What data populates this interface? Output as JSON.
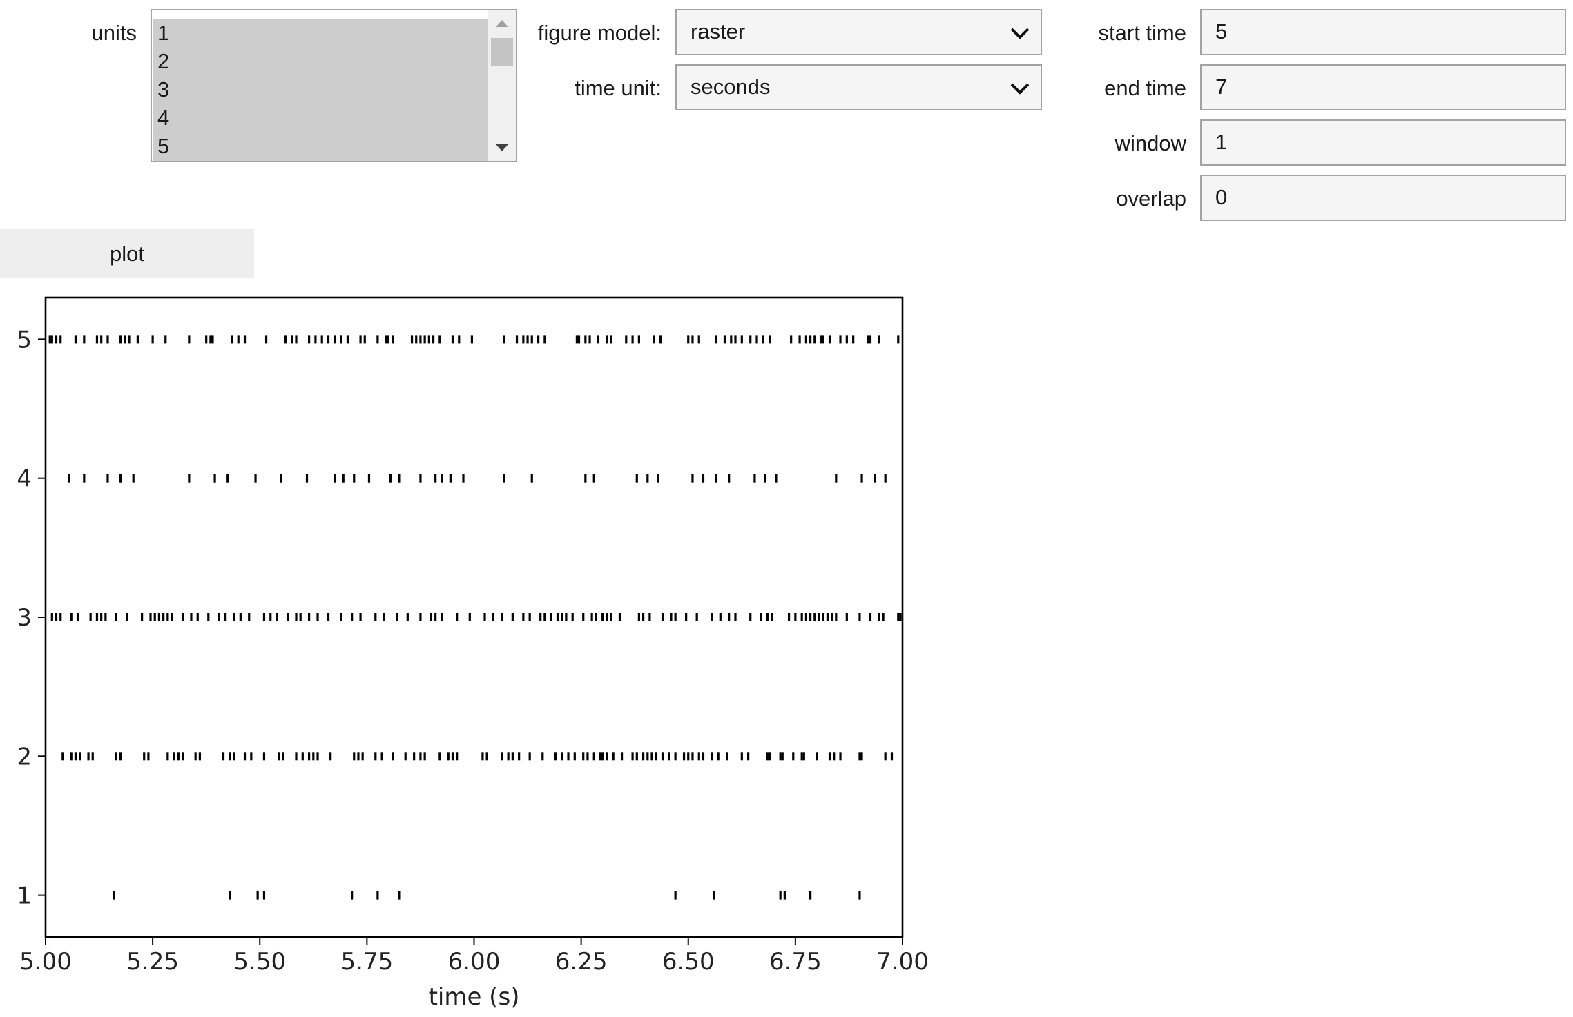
{
  "controls": {
    "units": {
      "label": "units",
      "options": [
        "1",
        "2",
        "3",
        "4",
        "5"
      ]
    },
    "figure_model": {
      "label": "figure model:",
      "value": "raster"
    },
    "time_unit": {
      "label": "time unit:",
      "value": "seconds"
    },
    "start_time": {
      "label": "start time",
      "value": "5"
    },
    "end_time": {
      "label": "end time",
      "value": "7"
    },
    "window": {
      "label": "window",
      "value": "1"
    },
    "overlap": {
      "label": "overlap",
      "value": "0"
    },
    "plot_label": "plot"
  },
  "chart_data": {
    "type": "scatter",
    "marker": "|",
    "xlabel": "time (s)",
    "ylabel": "",
    "xlim": [
      5.0,
      7.0
    ],
    "ylim": [
      0.7,
      5.3
    ],
    "xticks": [
      "5.00",
      "5.25",
      "5.50",
      "5.75",
      "6.00",
      "6.25",
      "6.50",
      "6.75",
      "7.00"
    ],
    "yticks": [
      "1",
      "2",
      "3",
      "4",
      "5"
    ],
    "grid": false,
    "series": [
      {
        "unit": 1,
        "spike_times": [
          5.16,
          5.43,
          5.495,
          5.51,
          5.715,
          5.775,
          5.825,
          6.47,
          6.56,
          6.715,
          6.725,
          6.785,
          6.9
        ]
      },
      {
        "unit": 2,
        "spike_times": [
          5.04,
          5.06,
          5.07,
          5.08,
          5.1,
          5.11,
          5.165,
          5.175,
          5.23,
          5.24,
          5.285,
          5.3,
          5.31,
          5.32,
          5.35,
          5.36,
          5.415,
          5.43,
          5.44,
          5.465,
          5.48,
          5.51,
          5.545,
          5.555,
          5.585,
          5.6,
          5.615,
          5.625,
          5.635,
          5.665,
          5.72,
          5.73,
          5.74,
          5.77,
          5.785,
          5.81,
          5.84,
          5.86,
          5.875,
          5.885,
          5.92,
          5.94,
          5.95,
          5.96,
          6.02,
          6.03,
          6.065,
          6.08,
          6.09,
          6.105,
          6.13,
          6.16,
          6.19,
          6.205,
          6.22,
          6.235,
          6.255,
          6.265,
          6.28,
          6.295,
          6.3,
          6.31,
          6.325,
          6.345,
          6.37,
          6.38,
          6.395,
          6.405,
          6.415,
          6.425,
          6.44,
          6.455,
          6.47,
          6.49,
          6.5,
          6.51,
          6.525,
          6.535,
          6.555,
          6.57,
          6.59,
          6.625,
          6.64,
          6.685,
          6.69,
          6.715,
          6.72,
          6.745,
          6.765,
          6.77,
          6.8,
          6.83,
          6.84,
          6.855,
          6.9,
          6.905,
          6.96,
          6.975
        ]
      },
      {
        "unit": 3,
        "spike_times": [
          5.015,
          5.025,
          5.035,
          5.06,
          5.075,
          5.105,
          5.12,
          5.13,
          5.14,
          5.165,
          5.19,
          5.225,
          5.245,
          5.255,
          5.265,
          5.275,
          5.285,
          5.295,
          5.32,
          5.34,
          5.355,
          5.38,
          5.405,
          5.42,
          5.44,
          5.455,
          5.475,
          5.51,
          5.525,
          5.54,
          5.565,
          5.585,
          5.595,
          5.615,
          5.635,
          5.66,
          5.69,
          5.715,
          5.735,
          5.77,
          5.79,
          5.82,
          5.845,
          5.875,
          5.9,
          5.91,
          5.925,
          5.96,
          5.99,
          6.025,
          6.045,
          6.065,
          6.09,
          6.115,
          6.13,
          6.155,
          6.165,
          6.18,
          6.195,
          6.205,
          6.215,
          6.23,
          6.255,
          6.275,
          6.285,
          6.3,
          6.31,
          6.32,
          6.34,
          6.385,
          6.395,
          6.41,
          6.44,
          6.46,
          6.47,
          6.495,
          6.52,
          6.555,
          6.575,
          6.595,
          6.61,
          6.645,
          6.67,
          6.685,
          6.695,
          6.735,
          6.75,
          6.765,
          6.775,
          6.785,
          6.795,
          6.805,
          6.815,
          6.825,
          6.835,
          6.845,
          6.87,
          6.9,
          6.925,
          6.945,
          6.955,
          6.99,
          6.995
        ]
      },
      {
        "unit": 4,
        "spike_times": [
          5.055,
          5.09,
          5.145,
          5.175,
          5.205,
          5.335,
          5.395,
          5.425,
          5.49,
          5.55,
          5.61,
          5.675,
          5.695,
          5.72,
          5.755,
          5.805,
          5.825,
          5.875,
          5.91,
          5.925,
          5.945,
          5.975,
          6.07,
          6.135,
          6.26,
          6.28,
          6.38,
          6.405,
          6.43,
          6.51,
          6.535,
          6.565,
          6.595,
          6.655,
          6.68,
          6.705,
          6.845,
          6.905,
          6.935,
          6.96
        ]
      },
      {
        "unit": 5,
        "spike_times": [
          5.01,
          5.015,
          5.025,
          5.035,
          5.07,
          5.09,
          5.12,
          5.13,
          5.145,
          5.175,
          5.185,
          5.195,
          5.215,
          5.25,
          5.28,
          5.335,
          5.375,
          5.385,
          5.39,
          5.435,
          5.45,
          5.465,
          5.515,
          5.56,
          5.575,
          5.585,
          5.615,
          5.63,
          5.645,
          5.66,
          5.675,
          5.69,
          5.69,
          5.705,
          5.735,
          5.745,
          5.775,
          5.795,
          5.8,
          5.81,
          5.855,
          5.865,
          5.875,
          5.885,
          5.895,
          5.905,
          5.92,
          5.95,
          5.965,
          5.995,
          6.07,
          6.1,
          6.115,
          6.125,
          6.135,
          6.15,
          6.165,
          6.24,
          6.245,
          6.26,
          6.27,
          6.29,
          6.31,
          6.32,
          6.355,
          6.37,
          6.385,
          6.42,
          6.435,
          6.5,
          6.51,
          6.525,
          6.565,
          6.585,
          6.6,
          6.61,
          6.625,
          6.645,
          6.66,
          6.675,
          6.69,
          6.74,
          6.76,
          6.775,
          6.785,
          6.795,
          6.81,
          6.815,
          6.83,
          6.855,
          6.87,
          6.885,
          6.92,
          6.925,
          6.945,
          6.99
        ]
      }
    ]
  }
}
